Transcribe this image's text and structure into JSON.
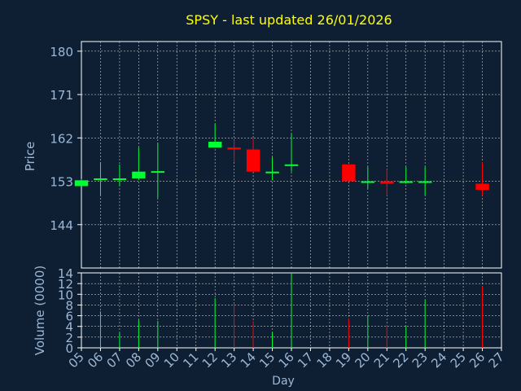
{
  "title": "SPSY - last updated 26/01/2026",
  "colors": {
    "background": "#0f1f33",
    "title": "#ffff00",
    "axis_text": "#9bb8d6",
    "frame": "#ffffff",
    "grid": "#ffffff",
    "up": "#00ff33",
    "down": "#ff0000"
  },
  "chart_data": [
    {
      "type": "candlestick",
      "title": "SPSY - last updated 26/01/2026",
      "ylabel": "Price",
      "ylim": [
        135,
        182
      ],
      "yticks": [
        144,
        153,
        162,
        171,
        180
      ],
      "grid": true,
      "candles": [
        {
          "day": "05",
          "open": 152.0,
          "high": 153.5,
          "low": 152.0,
          "close": 153.2
        },
        {
          "day": "06",
          "open": 153.3,
          "high": 157.0,
          "low": 150.0,
          "close": 153.6
        },
        {
          "day": "07",
          "open": 153.3,
          "high": 156.5,
          "low": 152.0,
          "close": 153.6
        },
        {
          "day": "08",
          "open": 153.6,
          "high": 160.0,
          "low": 153.3,
          "close": 155.0
        },
        {
          "day": "09",
          "open": 154.8,
          "high": 161.0,
          "low": 149.5,
          "close": 155.1
        },
        {
          "day": "12",
          "open": 160.0,
          "high": 165.0,
          "low": 160.0,
          "close": 161.2
        },
        {
          "day": "13",
          "open": 160.0,
          "high": 161.5,
          "low": 157.0,
          "close": 159.6
        },
        {
          "day": "14",
          "open": 159.6,
          "high": 162.0,
          "low": 155.0,
          "close": 155.0
        },
        {
          "day": "15",
          "open": 154.8,
          "high": 158.0,
          "low": 153.2,
          "close": 155.0
        },
        {
          "day": "16",
          "open": 156.3,
          "high": 163.0,
          "low": 155.0,
          "close": 156.5
        },
        {
          "day": "19",
          "open": 156.5,
          "high": 156.5,
          "low": 153.0,
          "close": 153.0
        },
        {
          "day": "20",
          "open": 152.8,
          "high": 156.0,
          "low": 151.5,
          "close": 153.0
        },
        {
          "day": "21",
          "open": 153.0,
          "high": 155.5,
          "low": 150.0,
          "close": 152.5
        },
        {
          "day": "22",
          "open": 152.8,
          "high": 156.0,
          "low": 152.5,
          "close": 153.0
        },
        {
          "day": "23",
          "open": 152.8,
          "high": 156.0,
          "low": 150.0,
          "close": 153.0
        },
        {
          "day": "26",
          "open": 152.5,
          "high": 157.0,
          "low": 150.0,
          "close": 151.2
        }
      ]
    },
    {
      "type": "bar",
      "ylabel": "Volume (0000)",
      "xlabel": "Day",
      "ylim": [
        0,
        14
      ],
      "yticks": [
        0,
        2,
        4,
        6,
        8,
        10,
        12,
        14
      ],
      "grid": true,
      "categories": [
        "05",
        "06",
        "07",
        "08",
        "09",
        "10",
        "11",
        "12",
        "13",
        "14",
        "15",
        "16",
        "17",
        "18",
        "19",
        "20",
        "21",
        "22",
        "23",
        "24",
        "25",
        "26",
        "27"
      ],
      "volumes": [
        {
          "day": "06",
          "value": 6.8,
          "direction": "up"
        },
        {
          "day": "07",
          "value": 2.8,
          "direction": "up"
        },
        {
          "day": "08",
          "value": 5.2,
          "direction": "up"
        },
        {
          "day": "09",
          "value": 5.0,
          "direction": "up"
        },
        {
          "day": "12",
          "value": 9.3,
          "direction": "up"
        },
        {
          "day": "13",
          "value": 8.3,
          "direction": "down"
        },
        {
          "day": "14",
          "value": 5.0,
          "direction": "down"
        },
        {
          "day": "15",
          "value": 3.0,
          "direction": "up"
        },
        {
          "day": "16",
          "value": 14.0,
          "direction": "up"
        },
        {
          "day": "19",
          "value": 5.5,
          "direction": "down"
        },
        {
          "day": "20",
          "value": 6.0,
          "direction": "up"
        },
        {
          "day": "21",
          "value": 4.3,
          "direction": "down"
        },
        {
          "day": "22",
          "value": 4.0,
          "direction": "up"
        },
        {
          "day": "23",
          "value": 9.0,
          "direction": "up"
        },
        {
          "day": "26",
          "value": 11.5,
          "direction": "down"
        }
      ]
    }
  ]
}
